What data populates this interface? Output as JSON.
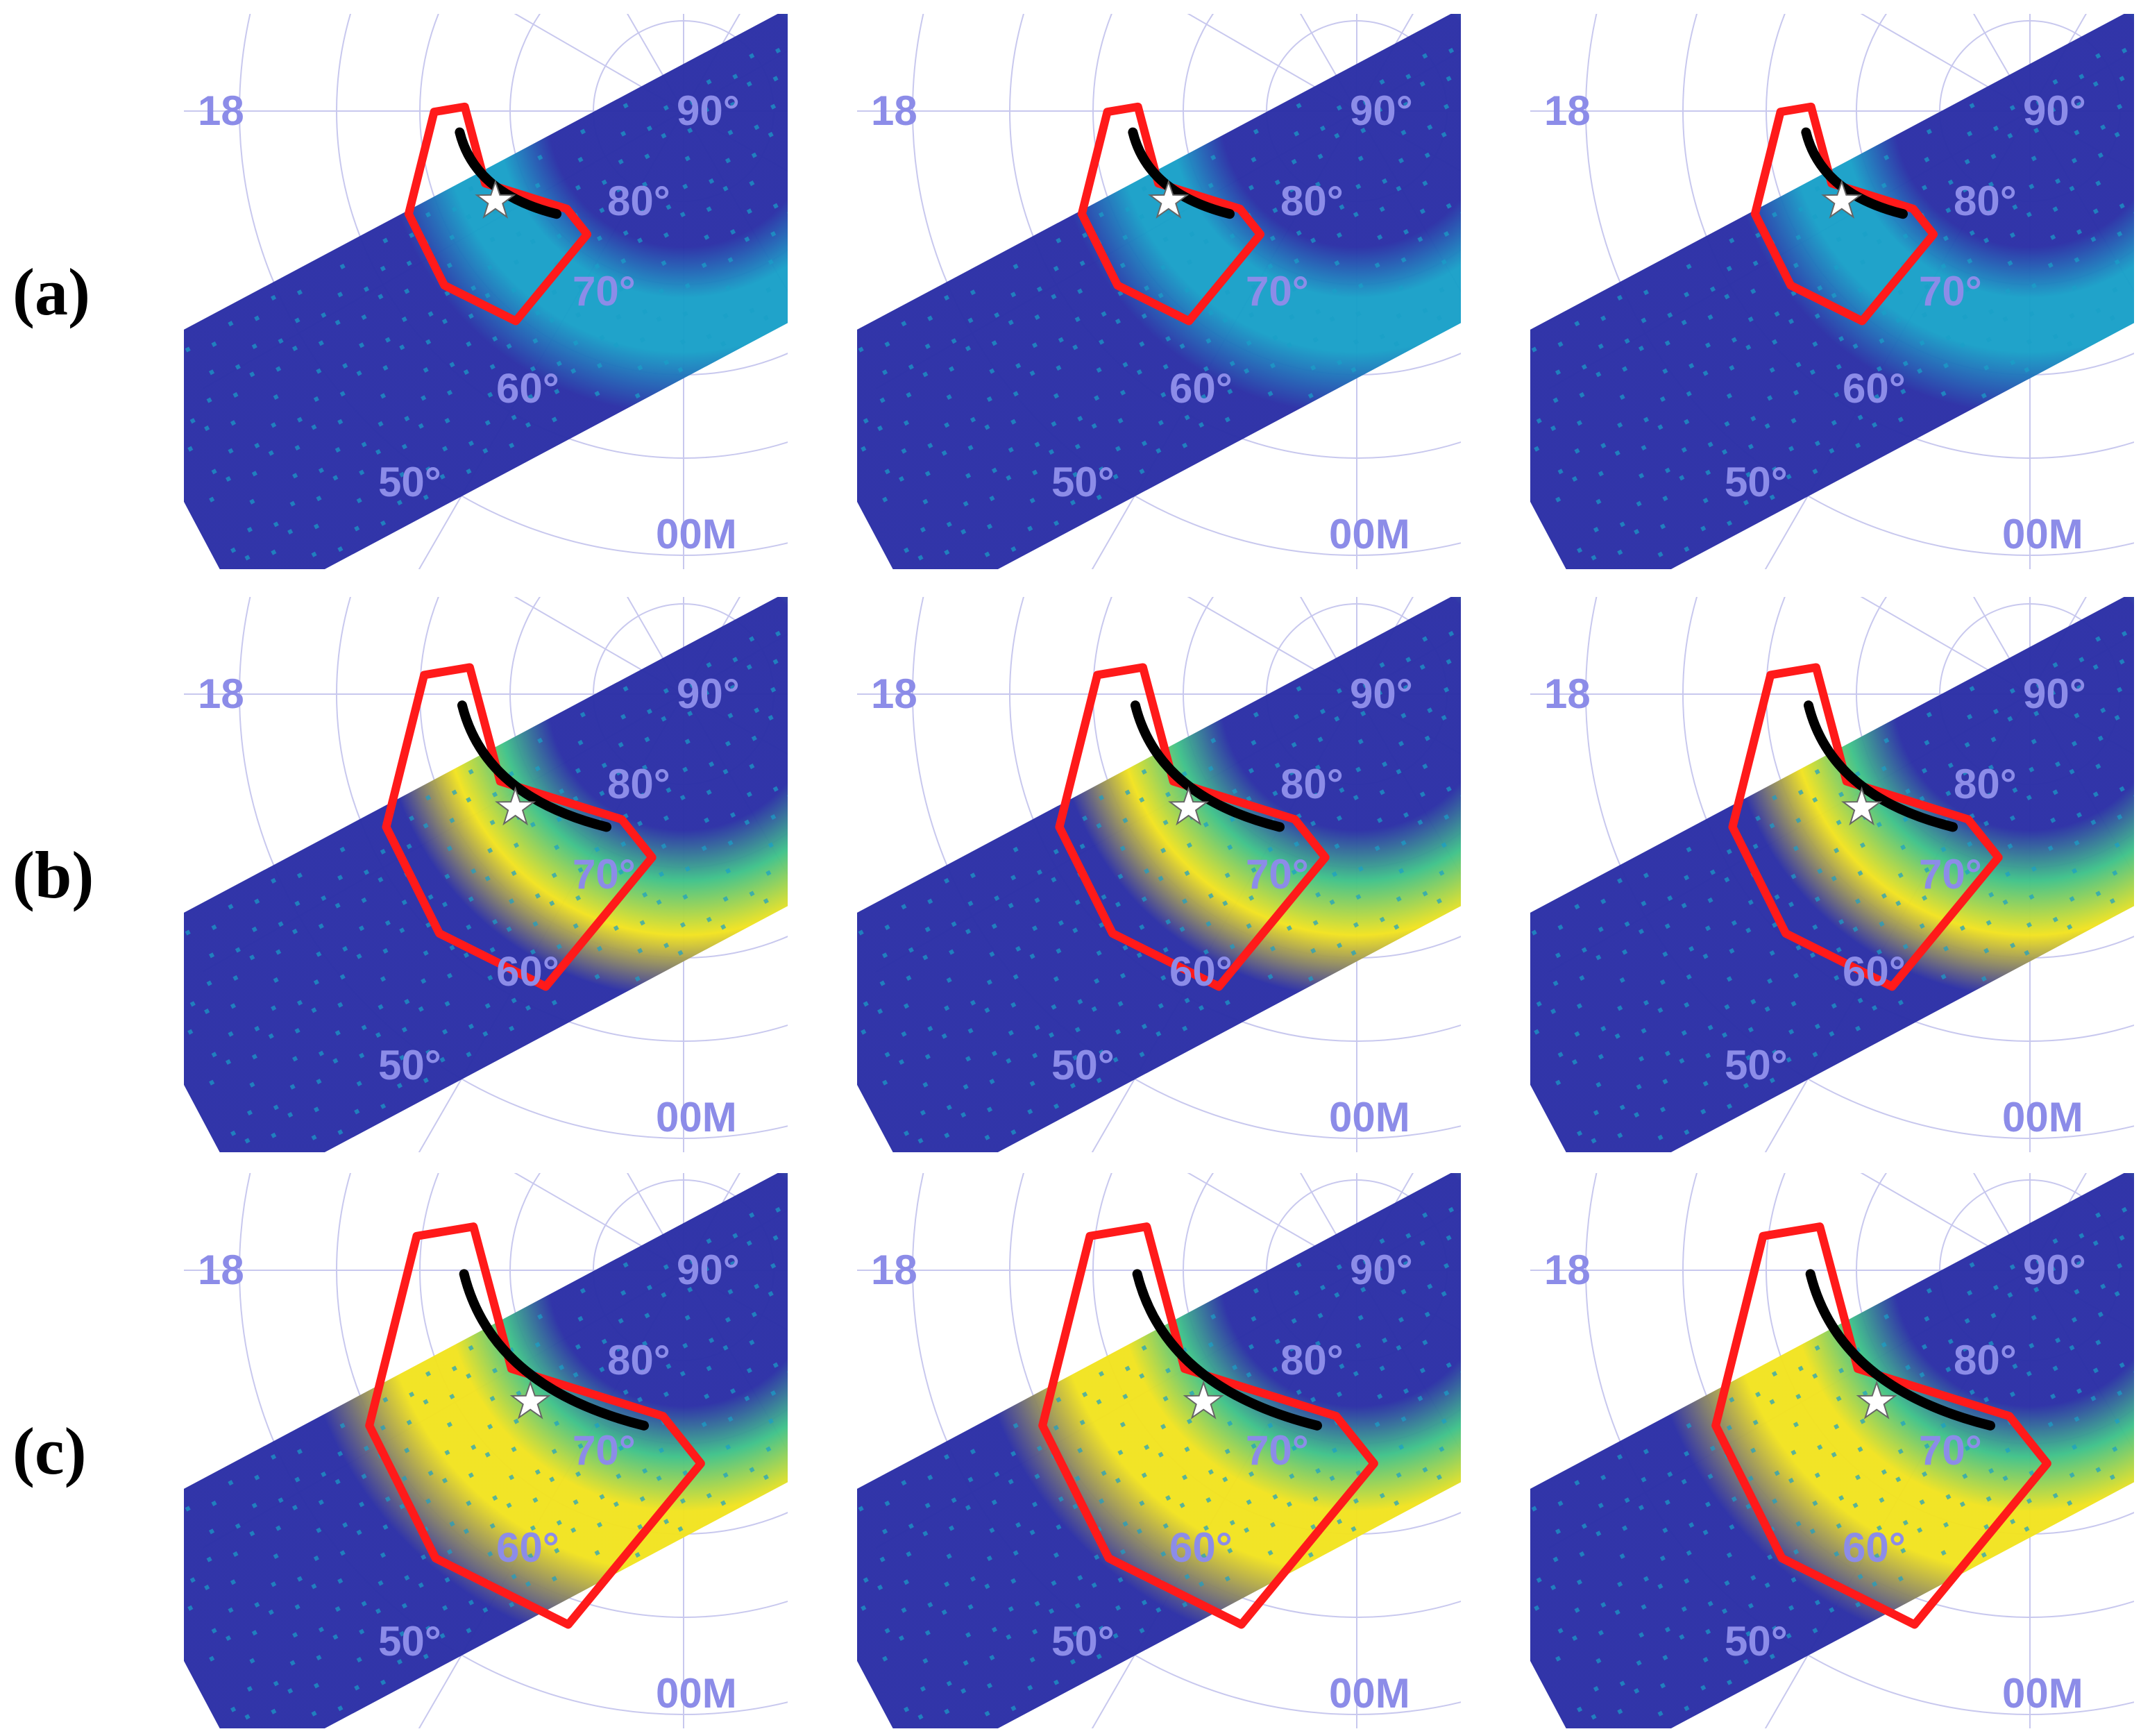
{
  "figure": {
    "rows": [
      {
        "label": "(a)",
        "level": 0.15
      },
      {
        "label": "(b)",
        "level": 0.55
      },
      {
        "label": "(c)",
        "level": 0.85
      }
    ],
    "panels_per_row": 3,
    "map_labels": {
      "lat_90": "90°",
      "lat_80": "80°",
      "lat_70": "70°",
      "lat_60": "60°",
      "lat_50": "50°",
      "mlt_18": "18",
      "mlt_00": "00M"
    },
    "colors": {
      "background_low": "#2b2fa6",
      "mid": "#19a0c8",
      "green": "#3fc28a",
      "high": "#f2e320",
      "boundary": "#ff1a1a",
      "track": "#000000",
      "grid": "#c8c8ee",
      "label": "#8c8ce8",
      "star": "#ffffff"
    },
    "legend_symbols": {
      "boundary": "red-outline",
      "track": "black-line",
      "marker": "white-star-icon"
    }
  }
}
